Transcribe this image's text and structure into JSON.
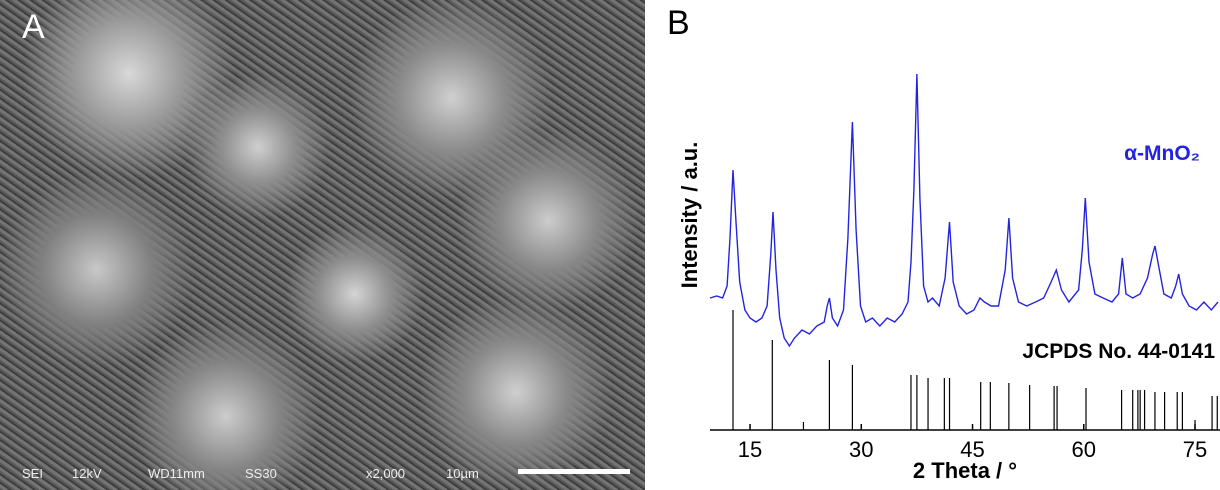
{
  "panel_a": {
    "label": "A",
    "info": [
      "SEI",
      "12kV",
      "WD11mm",
      "SS30",
      "x2,000",
      "10µm"
    ]
  },
  "chart_data": {
    "type": "line",
    "panel_label": "B",
    "xlabel": "2 Theta / °",
    "ylabel": "Intensity / a.u.",
    "xlim": [
      9.6,
      78.1
    ],
    "xticks": [
      15,
      30,
      45,
      60,
      75
    ],
    "ylim": [
      0,
      107.5
    ],
    "series": [
      {
        "name": "α-MnO₂",
        "color": "#2424e0",
        "type": "line",
        "x": [
          9.6,
          10.5,
          11.3,
          11.9,
          12.3,
          12.7,
          13.1,
          13.6,
          14.3,
          15.0,
          15.8,
          16.6,
          17.3,
          17.8,
          18.1,
          18.5,
          19.0,
          19.6,
          20.3,
          21.0,
          22.0,
          23.0,
          24.0,
          25.0,
          25.4,
          25.7,
          26.1,
          26.8,
          27.6,
          28.2,
          28.8,
          29.3,
          29.9,
          30.6,
          31.5,
          32.5,
          33.5,
          34.5,
          35.5,
          36.3,
          36.7,
          37.1,
          37.5,
          37.9,
          38.4,
          39.0,
          39.6,
          40.5,
          41.3,
          41.9,
          42.4,
          43.2,
          44.2,
          45.2,
          46.0,
          46.6,
          47.5,
          48.5,
          49.4,
          49.9,
          50.4,
          51.2,
          52.3,
          53.5,
          54.6,
          55.6,
          56.3,
          57.0,
          58.0,
          59.3,
          59.8,
          60.2,
          60.7,
          61.5,
          62.6,
          63.8,
          64.7,
          65.2,
          65.7,
          66.6,
          67.6,
          68.6,
          69.3,
          69.6,
          70.0,
          70.8,
          71.8,
          72.4,
          72.8,
          73.3,
          74.2,
          75.2,
          76.2,
          77.2,
          78.1
        ],
        "values": [
          33,
          33.5,
          33,
          36,
          48,
          65,
          52,
          37,
          30,
          28,
          27,
          28,
          31,
          44,
          54.5,
          40,
          28,
          23,
          21,
          23,
          25,
          24,
          26,
          27,
          31,
          33,
          28,
          26,
          30,
          48,
          77,
          50,
          31,
          27,
          28,
          26,
          28,
          27,
          29,
          32,
          42,
          60,
          89,
          58,
          36,
          32,
          33,
          31,
          38,
          52,
          37,
          31,
          29,
          30,
          33,
          32,
          31,
          31,
          40,
          53,
          38,
          32,
          31,
          32,
          33,
          37,
          40,
          35,
          32,
          35,
          45,
          58,
          42,
          34,
          33,
          32,
          34,
          43,
          34,
          33,
          34,
          38,
          44,
          46,
          42,
          34,
          33,
          36,
          39,
          34,
          31,
          30,
          32,
          30,
          32
        ]
      },
      {
        "name": "JCPDS No. 44-0141",
        "color": "#000000",
        "type": "stick",
        "x": [
          12.7,
          18.0,
          22.2,
          25.7,
          28.8,
          36.7,
          37.5,
          39.0,
          41.2,
          41.9,
          46.1,
          47.4,
          49.9,
          52.7,
          56.0,
          56.4,
          60.3,
          65.1,
          66.6,
          67.3,
          67.6,
          68.2,
          69.6,
          70.9,
          72.6,
          73.3,
          75.0,
          77.3,
          78.0
        ],
        "values": [
          30,
          22.5,
          2,
          17.5,
          16.25,
          13.75,
          13.75,
          13,
          13,
          13,
          12,
          12,
          11.75,
          11.25,
          11,
          11,
          10.5,
          10,
          10,
          10,
          10,
          10,
          9.5,
          9.5,
          9.5,
          9.5,
          2.5,
          8.5,
          8.5
        ]
      }
    ]
  }
}
